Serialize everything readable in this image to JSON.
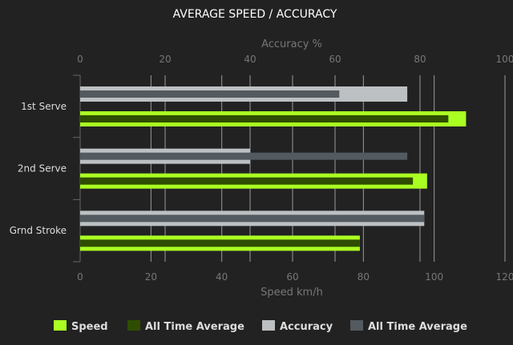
{
  "chart_data": {
    "type": "bar",
    "orientation": "horizontal",
    "title": "AVERAGE SPEED / ACCURACY",
    "categories": [
      "1st Serve",
      "2nd Serve",
      "Grnd Stroke"
    ],
    "top_axis": {
      "label": "Accuracy %",
      "range": [
        0,
        100
      ],
      "ticks": [
        0,
        20,
        40,
        60,
        80,
        100
      ]
    },
    "bottom_axis": {
      "label": "Speed km/h",
      "range": [
        0,
        120
      ],
      "ticks": [
        0,
        20,
        40,
        60,
        80,
        100,
        120
      ]
    },
    "grid": true,
    "legend_position": "bottom",
    "series": [
      {
        "name": "Speed",
        "axis": "speed",
        "color": "#aaff22",
        "values": [
          109,
          98,
          79
        ]
      },
      {
        "name": "All Time Average",
        "axis": "speed",
        "color": "#2f4d00",
        "values": [
          104,
          94,
          79
        ]
      },
      {
        "name": "Accuracy",
        "axis": "accuracy",
        "color": "#bcc0c2",
        "values": [
          77,
          40,
          81
        ]
      },
      {
        "name": "All Time Average",
        "axis": "accuracy",
        "color": "#535a60",
        "values": [
          61,
          77,
          81
        ]
      }
    ]
  }
}
